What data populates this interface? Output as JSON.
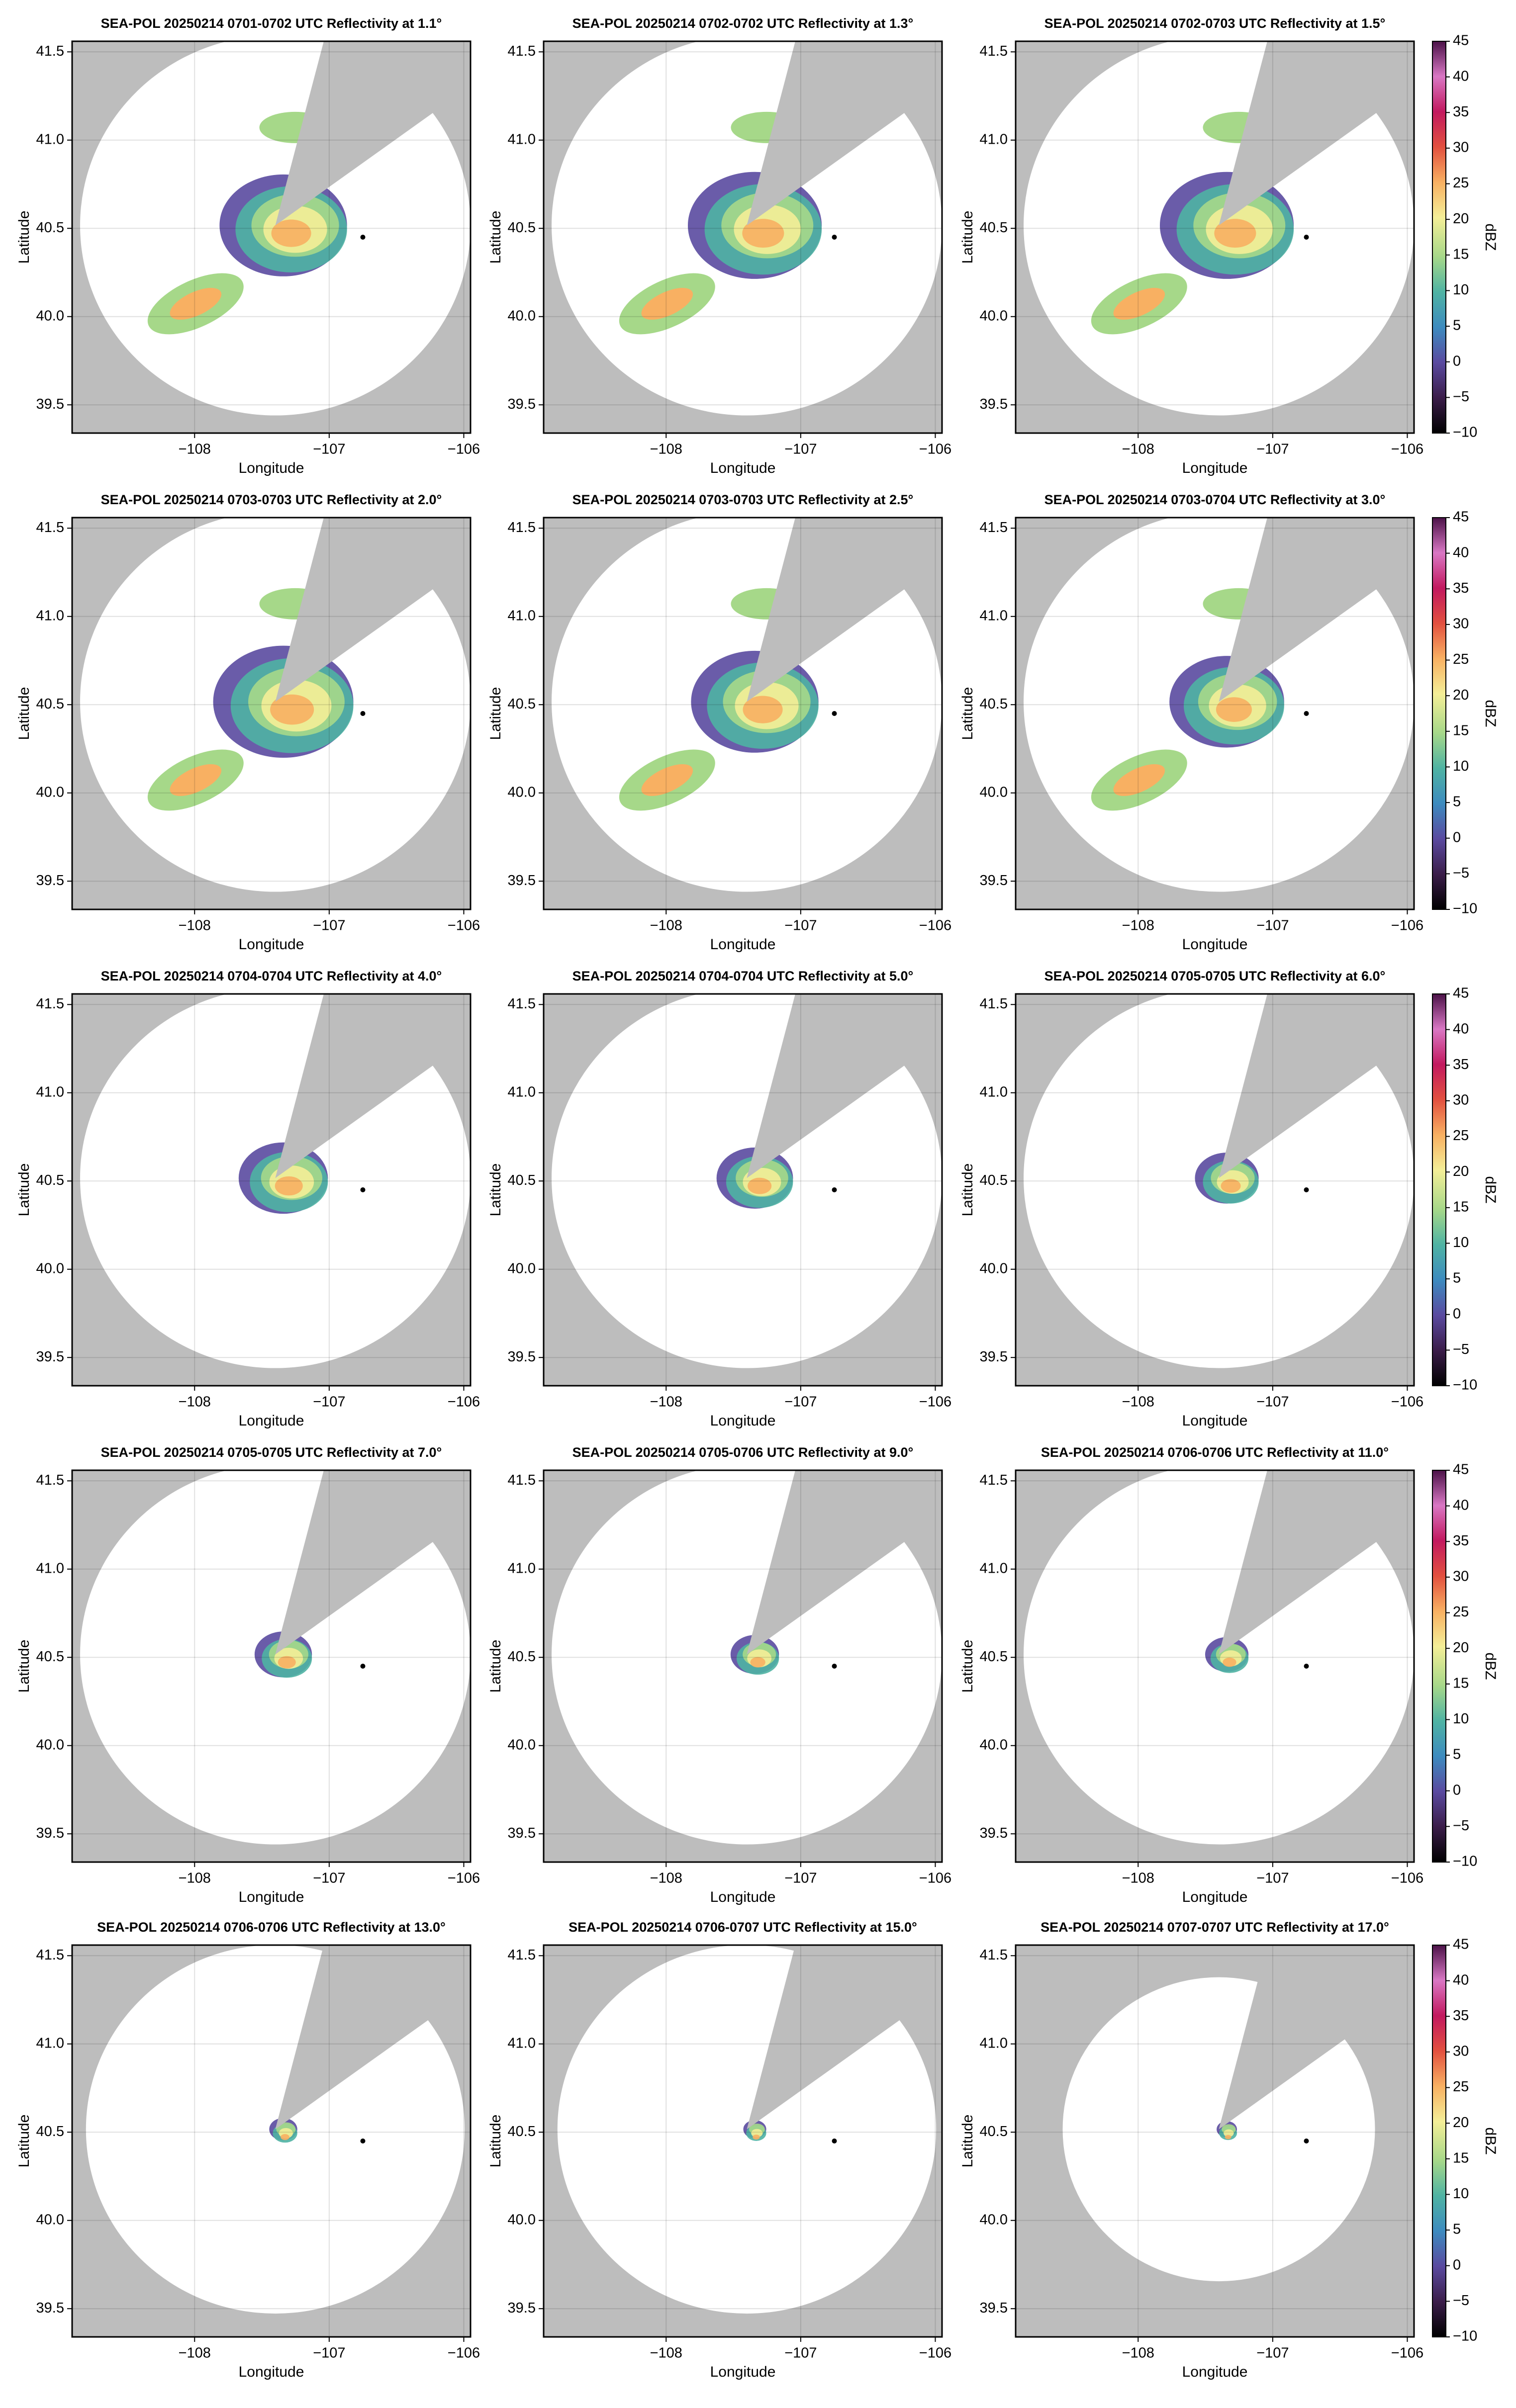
{
  "colorbar": {
    "label": "dBZ",
    "lim": [
      -10,
      45
    ],
    "ticks": [
      {
        "value": -10,
        "label": "−10"
      },
      {
        "value": -5,
        "label": "−5"
      },
      0,
      5,
      10,
      15,
      20,
      25,
      30,
      35,
      40,
      45
    ]
  },
  "chart_data": [
    {
      "type": "radar",
      "title": "SEA-POL 20250214 0701-0702 UTC Reflectivity at 1.1°",
      "xlabel": "Longitude",
      "ylabel": "Latitude",
      "xlim": [
        -108.91,
        -105.95
      ],
      "ylim": [
        39.34,
        41.56
      ],
      "xticks": [
        {
          "value": -108,
          "label": "−108"
        },
        {
          "value": -107,
          "label": "−107"
        },
        {
          "value": -106,
          "label": "−106"
        }
      ],
      "yticks": [
        39.5,
        {
          "value": 40,
          "label": "40.0"
        },
        40.5,
        {
          "value": 41,
          "label": "41.0"
        },
        41.5
      ],
      "marker": {
        "x": -106.75,
        "y": 40.45
      }
    },
    {
      "type": "radar",
      "title": "SEA-POL 20250214 0702-0702 UTC Reflectivity at 1.3°",
      "xlabel": "Longitude",
      "ylabel": "Latitude",
      "xlim": [
        -108.91,
        -105.95
      ],
      "ylim": [
        39.34,
        41.56
      ],
      "xticks": [
        {
          "value": -108,
          "label": "−108"
        },
        {
          "value": -107,
          "label": "−107"
        },
        {
          "value": -106,
          "label": "−106"
        }
      ],
      "yticks": [
        39.5,
        {
          "value": 40,
          "label": "40.0"
        },
        40.5,
        {
          "value": 41,
          "label": "41.0"
        },
        41.5
      ],
      "marker": {
        "x": -106.75,
        "y": 40.45
      }
    },
    {
      "type": "radar",
      "title": "SEA-POL 20250214 0702-0703 UTC Reflectivity at 1.5°",
      "xlabel": "Longitude",
      "ylabel": "Latitude",
      "xlim": [
        -108.91,
        -105.95
      ],
      "ylim": [
        39.34,
        41.56
      ],
      "xticks": [
        {
          "value": -108,
          "label": "−108"
        },
        {
          "value": -107,
          "label": "−107"
        },
        {
          "value": -106,
          "label": "−106"
        }
      ],
      "yticks": [
        39.5,
        {
          "value": 40,
          "label": "40.0"
        },
        40.5,
        {
          "value": 41,
          "label": "41.0"
        },
        41.5
      ],
      "marker": {
        "x": -106.75,
        "y": 40.45
      }
    },
    {
      "type": "radar",
      "title": "SEA-POL 20250214 0703-0703 UTC Reflectivity at 2.0°",
      "xlabel": "Longitude",
      "ylabel": "Latitude",
      "xlim": [
        -108.91,
        -105.95
      ],
      "ylim": [
        39.34,
        41.56
      ],
      "xticks": [
        {
          "value": -108,
          "label": "−108"
        },
        {
          "value": -107,
          "label": "−107"
        },
        {
          "value": -106,
          "label": "−106"
        }
      ],
      "yticks": [
        39.5,
        {
          "value": 40,
          "label": "40.0"
        },
        40.5,
        {
          "value": 41,
          "label": "41.0"
        },
        41.5
      ],
      "marker": {
        "x": -106.75,
        "y": 40.45
      }
    },
    {
      "type": "radar",
      "title": "SEA-POL 20250214 0703-0703 UTC Reflectivity at 2.5°",
      "xlabel": "Longitude",
      "ylabel": "Latitude",
      "xlim": [
        -108.91,
        -105.95
      ],
      "ylim": [
        39.34,
        41.56
      ],
      "xticks": [
        {
          "value": -108,
          "label": "−108"
        },
        {
          "value": -107,
          "label": "−107"
        },
        {
          "value": -106,
          "label": "−106"
        }
      ],
      "yticks": [
        39.5,
        {
          "value": 40,
          "label": "40.0"
        },
        40.5,
        {
          "value": 41,
          "label": "41.0"
        },
        41.5
      ],
      "marker": {
        "x": -106.75,
        "y": 40.45
      }
    },
    {
      "type": "radar",
      "title": "SEA-POL 20250214 0703-0704 UTC Reflectivity at 3.0°",
      "xlabel": "Longitude",
      "ylabel": "Latitude",
      "xlim": [
        -108.91,
        -105.95
      ],
      "ylim": [
        39.34,
        41.56
      ],
      "xticks": [
        {
          "value": -108,
          "label": "−108"
        },
        {
          "value": -107,
          "label": "−107"
        },
        {
          "value": -106,
          "label": "−106"
        }
      ],
      "yticks": [
        39.5,
        {
          "value": 40,
          "label": "40.0"
        },
        40.5,
        {
          "value": 41,
          "label": "41.0"
        },
        41.5
      ],
      "marker": {
        "x": -106.75,
        "y": 40.45
      }
    },
    {
      "type": "radar",
      "title": "SEA-POL 20250214 0704-0704 UTC Reflectivity at 4.0°",
      "xlabel": "Longitude",
      "ylabel": "Latitude",
      "xlim": [
        -108.91,
        -105.95
      ],
      "ylim": [
        39.34,
        41.56
      ],
      "xticks": [
        {
          "value": -108,
          "label": "−108"
        },
        {
          "value": -107,
          "label": "−107"
        },
        {
          "value": -106,
          "label": "−106"
        }
      ],
      "yticks": [
        39.5,
        {
          "value": 40,
          "label": "40.0"
        },
        40.5,
        {
          "value": 41,
          "label": "41.0"
        },
        41.5
      ],
      "marker": {
        "x": -106.75,
        "y": 40.45
      }
    },
    {
      "type": "radar",
      "title": "SEA-POL 20250214 0704-0704 UTC Reflectivity at 5.0°",
      "xlabel": "Longitude",
      "ylabel": "Latitude",
      "xlim": [
        -108.91,
        -105.95
      ],
      "ylim": [
        39.34,
        41.56
      ],
      "xticks": [
        {
          "value": -108,
          "label": "−108"
        },
        {
          "value": -107,
          "label": "−107"
        },
        {
          "value": -106,
          "label": "−106"
        }
      ],
      "yticks": [
        39.5,
        {
          "value": 40,
          "label": "40.0"
        },
        40.5,
        {
          "value": 41,
          "label": "41.0"
        },
        41.5
      ],
      "marker": {
        "x": -106.75,
        "y": 40.45
      }
    },
    {
      "type": "radar",
      "title": "SEA-POL 20250214 0705-0705 UTC Reflectivity at 6.0°",
      "xlabel": "Longitude",
      "ylabel": "Latitude",
      "xlim": [
        -108.91,
        -105.95
      ],
      "ylim": [
        39.34,
        41.56
      ],
      "xticks": [
        {
          "value": -108,
          "label": "−108"
        },
        {
          "value": -107,
          "label": "−107"
        },
        {
          "value": -106,
          "label": "−106"
        }
      ],
      "yticks": [
        39.5,
        {
          "value": 40,
          "label": "40.0"
        },
        40.5,
        {
          "value": 41,
          "label": "41.0"
        },
        41.5
      ],
      "marker": {
        "x": -106.75,
        "y": 40.45
      }
    },
    {
      "type": "radar",
      "title": "SEA-POL 20250214 0705-0705 UTC Reflectivity at 7.0°",
      "xlabel": "Longitude",
      "ylabel": "Latitude",
      "xlim": [
        -108.91,
        -105.95
      ],
      "ylim": [
        39.34,
        41.56
      ],
      "xticks": [
        {
          "value": -108,
          "label": "−108"
        },
        {
          "value": -107,
          "label": "−107"
        },
        {
          "value": -106,
          "label": "−106"
        }
      ],
      "yticks": [
        39.5,
        {
          "value": 40,
          "label": "40.0"
        },
        40.5,
        {
          "value": 41,
          "label": "41.0"
        },
        41.5
      ],
      "marker": {
        "x": -106.75,
        "y": 40.45
      }
    },
    {
      "type": "radar",
      "title": "SEA-POL 20250214 0705-0706 UTC Reflectivity at 9.0°",
      "xlabel": "Longitude",
      "ylabel": "Latitude",
      "xlim": [
        -108.91,
        -105.95
      ],
      "ylim": [
        39.34,
        41.56
      ],
      "xticks": [
        {
          "value": -108,
          "label": "−108"
        },
        {
          "value": -107,
          "label": "−107"
        },
        {
          "value": -106,
          "label": "−106"
        }
      ],
      "yticks": [
        39.5,
        {
          "value": 40,
          "label": "40.0"
        },
        40.5,
        {
          "value": 41,
          "label": "41.0"
        },
        41.5
      ],
      "marker": {
        "x": -106.75,
        "y": 40.45
      }
    },
    {
      "type": "radar",
      "title": "SEA-POL 20250214 0706-0706 UTC Reflectivity at 11.0°",
      "xlabel": "Longitude",
      "ylabel": "Latitude",
      "xlim": [
        -108.91,
        -105.95
      ],
      "ylim": [
        39.34,
        41.56
      ],
      "xticks": [
        {
          "value": -108,
          "label": "−108"
        },
        {
          "value": -107,
          "label": "−107"
        },
        {
          "value": -106,
          "label": "−106"
        }
      ],
      "yticks": [
        39.5,
        {
          "value": 40,
          "label": "40.0"
        },
        40.5,
        {
          "value": 41,
          "label": "41.0"
        },
        41.5
      ],
      "marker": {
        "x": -106.75,
        "y": 40.45
      }
    },
    {
      "type": "radar",
      "title": "SEA-POL 20250214 0706-0706 UTC Reflectivity at 13.0°",
      "xlabel": "Longitude",
      "ylabel": "Latitude",
      "xlim": [
        -108.91,
        -105.95
      ],
      "ylim": [
        39.34,
        41.56
      ],
      "xticks": [
        {
          "value": -108,
          "label": "−108"
        },
        {
          "value": -107,
          "label": "−107"
        },
        {
          "value": -106,
          "label": "−106"
        }
      ],
      "yticks": [
        39.5,
        {
          "value": 40,
          "label": "40.0"
        },
        40.5,
        {
          "value": 41,
          "label": "41.0"
        },
        41.5
      ],
      "marker": {
        "x": -106.75,
        "y": 40.45
      }
    },
    {
      "type": "radar",
      "title": "SEA-POL 20250214 0706-0707 UTC Reflectivity at 15.0°",
      "xlabel": "Longitude",
      "ylabel": "Latitude",
      "xlim": [
        -108.91,
        -105.95
      ],
      "ylim": [
        39.34,
        41.56
      ],
      "xticks": [
        {
          "value": -108,
          "label": "−108"
        },
        {
          "value": -107,
          "label": "−107"
        },
        {
          "value": -106,
          "label": "−106"
        }
      ],
      "yticks": [
        39.5,
        {
          "value": 40,
          "label": "40.0"
        },
        40.5,
        {
          "value": 41,
          "label": "41.0"
        },
        41.5
      ],
      "marker": {
        "x": -106.75,
        "y": 40.45
      }
    },
    {
      "type": "radar",
      "title": "SEA-POL 20250214 0707-0707 UTC Reflectivity at 17.0°",
      "xlabel": "Longitude",
      "ylabel": "Latitude",
      "xlim": [
        -108.91,
        -105.95
      ],
      "ylim": [
        39.34,
        41.56
      ],
      "xticks": [
        {
          "value": -108,
          "label": "−108"
        },
        {
          "value": -107,
          "label": "−107"
        },
        {
          "value": -106,
          "label": "−106"
        }
      ],
      "yticks": [
        39.5,
        {
          "value": 40,
          "label": "40.0"
        },
        40.5,
        {
          "value": 41,
          "label": "41.0"
        },
        41.5
      ],
      "marker": {
        "x": -106.75,
        "y": 40.45
      }
    }
  ]
}
